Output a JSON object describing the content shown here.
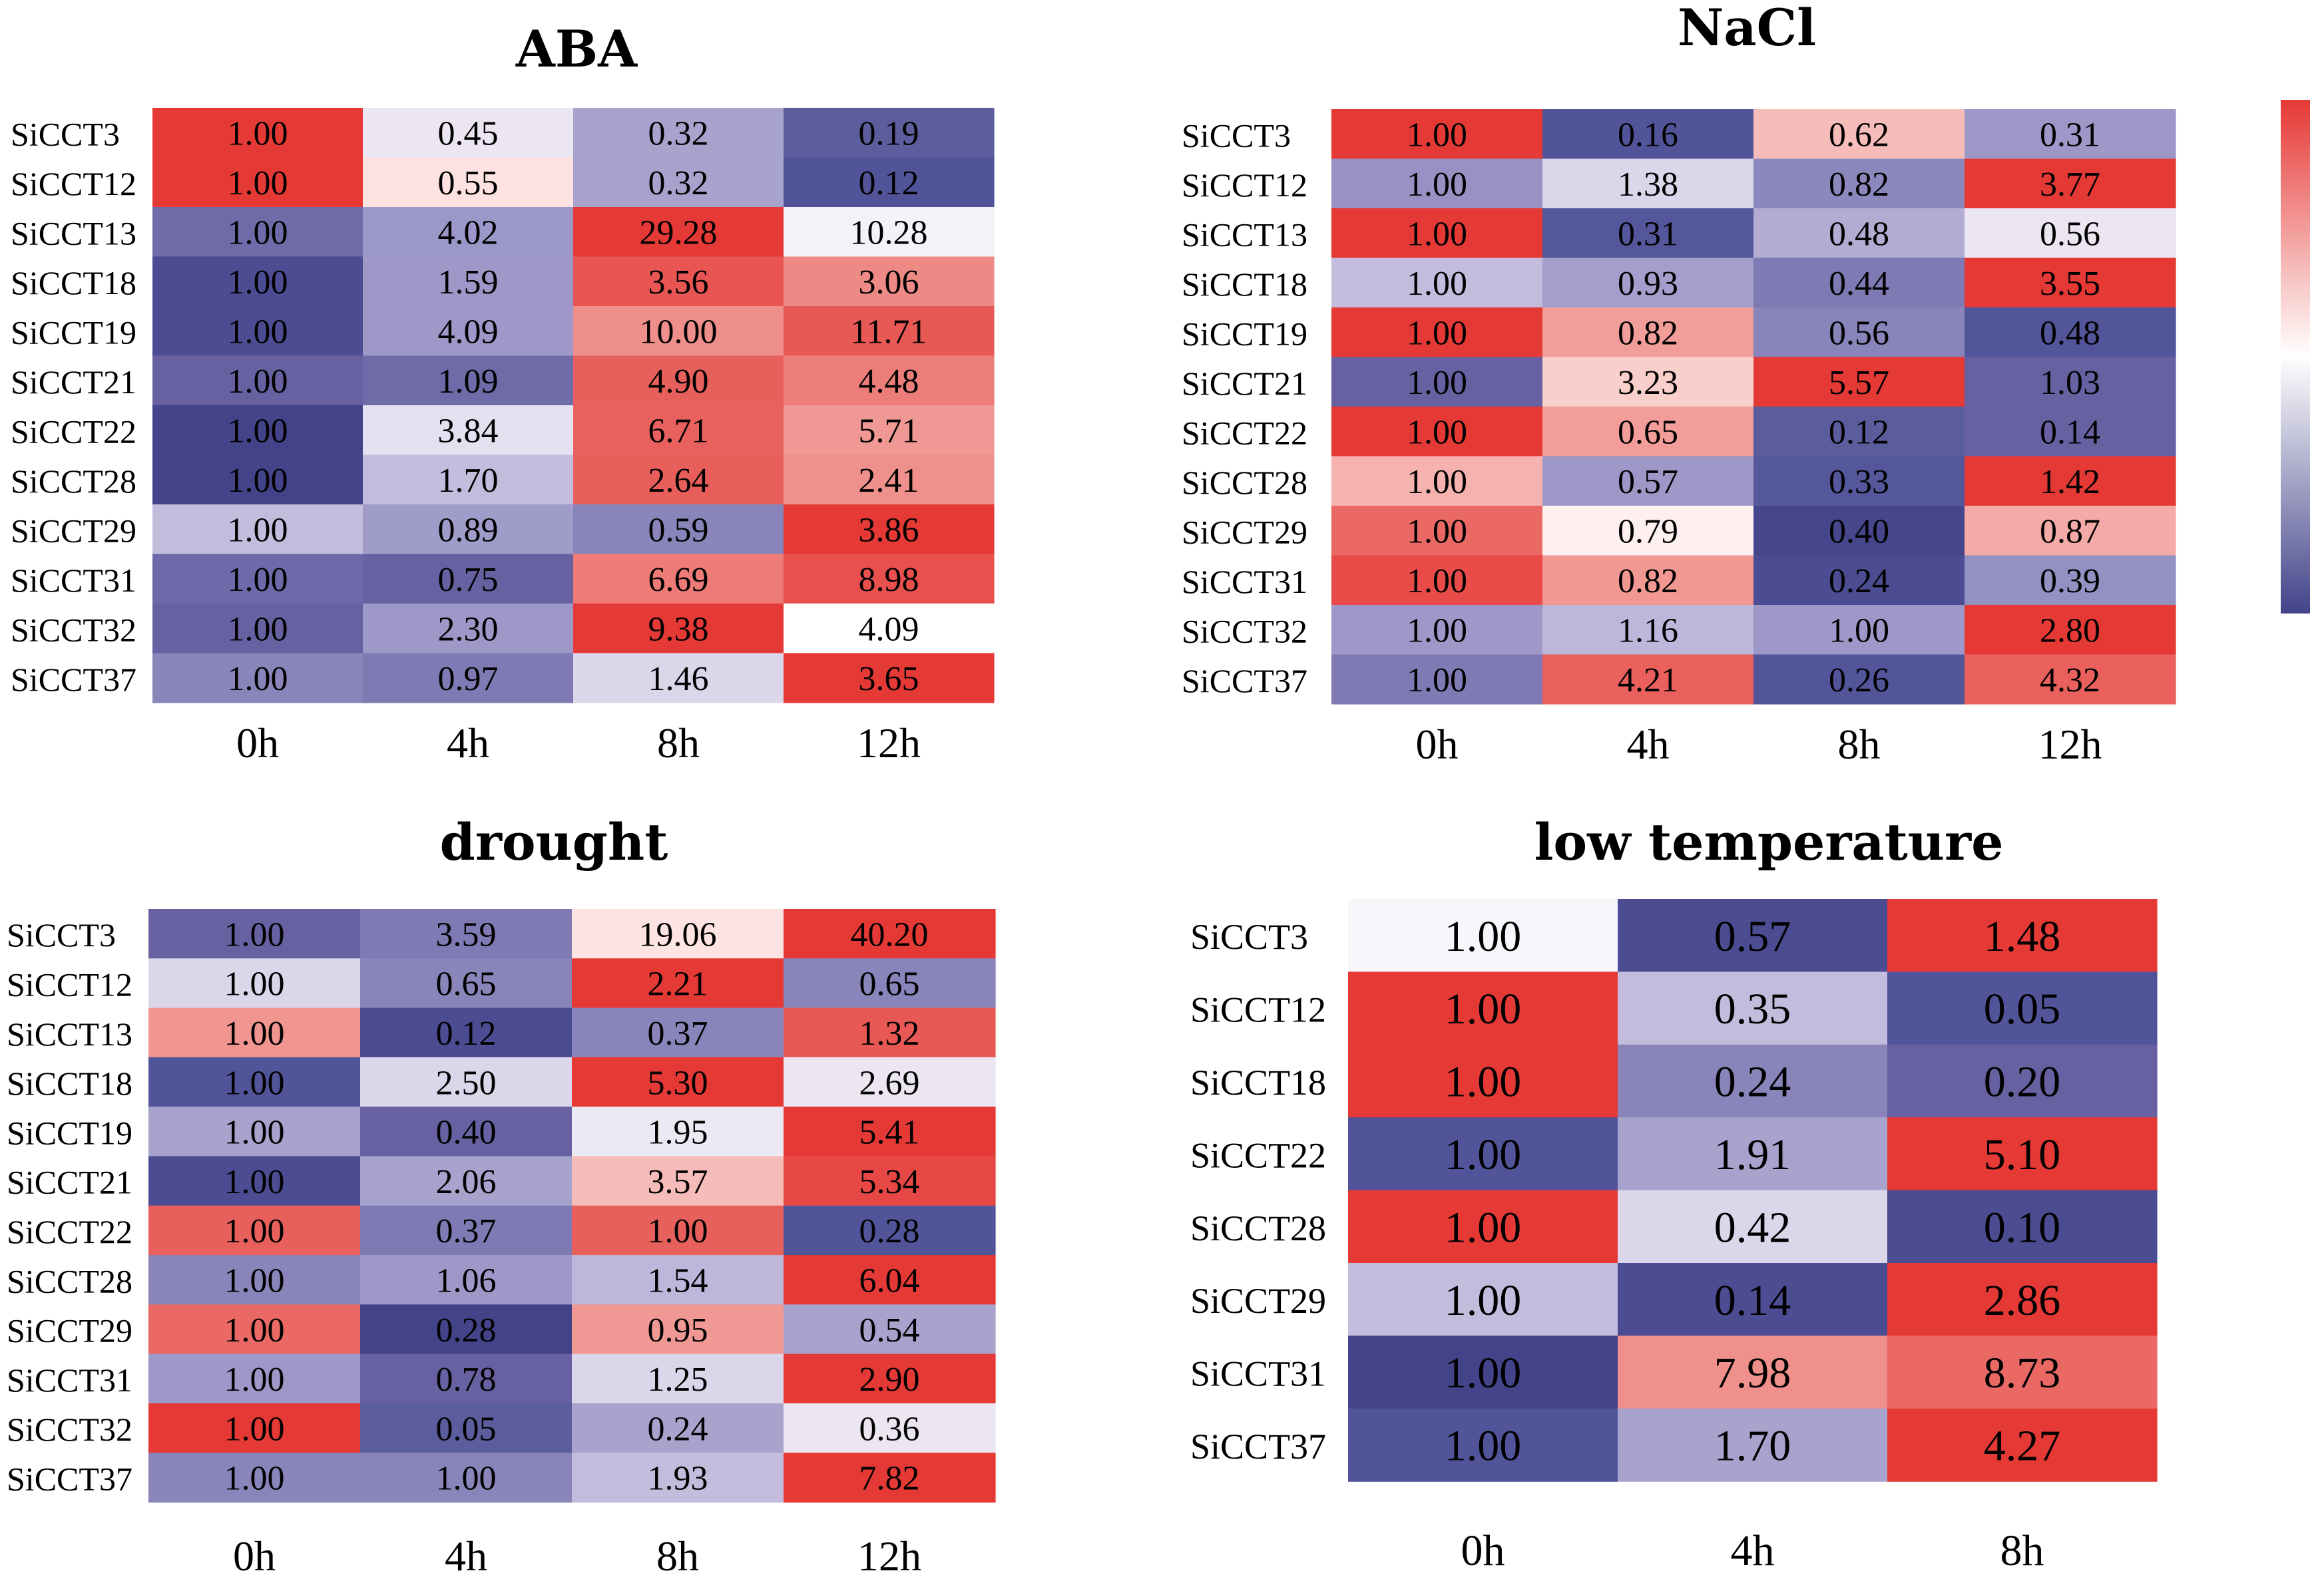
{
  "chart_data": [
    {
      "type": "heatmap",
      "title": "ABA",
      "rows": [
        "SiCCT3",
        "SiCCT12",
        "SiCCT13",
        "SiCCT18",
        "SiCCT19",
        "SiCCT21",
        "SiCCT22",
        "SiCCT28",
        "SiCCT29",
        "SiCCT31",
        "SiCCT32",
        "SiCCT37"
      ],
      "columns": [
        "0h",
        "4h",
        "8h",
        "12h"
      ],
      "values": [
        [
          "1.00",
          "0.45",
          "0.32",
          "0.19"
        ],
        [
          "1.00",
          "0.55",
          "0.32",
          "0.12"
        ],
        [
          "1.00",
          "4.02",
          "29.28",
          "10.28"
        ],
        [
          "1.00",
          "1.59",
          "3.56",
          "3.06"
        ],
        [
          "1.00",
          "4.09",
          "10.00",
          "11.71"
        ],
        [
          "1.00",
          "1.09",
          "4.90",
          "4.48"
        ],
        [
          "1.00",
          "3.84",
          "6.71",
          "5.71"
        ],
        [
          "1.00",
          "1.70",
          "2.64",
          "2.41"
        ],
        [
          "1.00",
          "0.89",
          "0.59",
          "3.86"
        ],
        [
          "1.00",
          "0.75",
          "6.69",
          "8.98"
        ],
        [
          "1.00",
          "2.30",
          "9.38",
          "4.09"
        ],
        [
          "1.00",
          "0.97",
          "1.46",
          "3.65"
        ]
      ],
      "colors": [
        [
          "#e53935",
          "#ebe6f1",
          "#a7a3cd",
          "#5c5d9c"
        ],
        [
          "#e53935",
          "#fde2e1",
          "#a7a3cd",
          "#52549a"
        ],
        [
          "#6f6aa8",
          "#9b97c8",
          "#e53936",
          "#f4f1f8"
        ],
        [
          "#4c4c93",
          "#9d98c8",
          "#e85552",
          "#ee8a86"
        ],
        [
          "#4c4c93",
          "#9d98c8",
          "#ef8f8b",
          "#e85955"
        ],
        [
          "#6761a2",
          "#6f6aa8",
          "#e8605c",
          "#ec7d78"
        ],
        [
          "#424389",
          "#e4e0ef",
          "#e8615e",
          "#f09894"
        ],
        [
          "#424389",
          "#c3bcdd",
          "#e85e5a",
          "#f0908c"
        ],
        [
          "#c3bcdd",
          "#a09cca",
          "#8984ba",
          "#e53936"
        ],
        [
          "#6e69a8",
          "#6761a2",
          "#ef7b77",
          "#e8504d"
        ],
        [
          "#6761a2",
          "#9d98c8",
          "#e53936",
          "#ffffff"
        ],
        [
          "#8984ba",
          "#7f7ab4",
          "#dcd6ea",
          "#e53936"
        ]
      ]
    },
    {
      "type": "heatmap",
      "title": "NaCl",
      "rows": [
        "SiCCT3",
        "SiCCT12",
        "SiCCT13",
        "SiCCT18",
        "SiCCT19",
        "SiCCT21",
        "SiCCT22",
        "SiCCT28",
        "SiCCT29",
        "SiCCT31",
        "SiCCT32",
        "SiCCT37"
      ],
      "columns": [
        "0h",
        "4h",
        "8h",
        "12h"
      ],
      "values": [
        [
          "1.00",
          "0.16",
          "0.62",
          "0.31"
        ],
        [
          "1.00",
          "1.38",
          "0.82",
          "3.77"
        ],
        [
          "1.00",
          "0.31",
          "0.48",
          "0.56"
        ],
        [
          "1.00",
          "0.93",
          "0.44",
          "3.55"
        ],
        [
          "1.00",
          "0.82",
          "0.56",
          "0.48"
        ],
        [
          "1.00",
          "3.23",
          "5.57",
          "1.03"
        ],
        [
          "1.00",
          "0.65",
          "0.12",
          "0.14"
        ],
        [
          "1.00",
          "0.57",
          "0.33",
          "1.42"
        ],
        [
          "1.00",
          "0.79",
          "0.40",
          "0.87"
        ],
        [
          "1.00",
          "0.82",
          "0.24",
          "0.39"
        ],
        [
          "1.00",
          "1.16",
          "1.00",
          "2.80"
        ],
        [
          "1.00",
          "4.21",
          "0.26",
          "4.32"
        ]
      ],
      "colors": [
        [
          "#e53936",
          "#52549a",
          "#f6bcb9",
          "#9d98c8"
        ],
        [
          "#9891c3",
          "#dcd6ea",
          "#8c87bc",
          "#e53936"
        ],
        [
          "#e53936",
          "#55579c",
          "#b2acd3",
          "#ebe6f1"
        ],
        [
          "#c3bcdd",
          "#a39ecb",
          "#7f7ab4",
          "#e53936"
        ],
        [
          "#e53936",
          "#f19e9a",
          "#8984ba",
          "#53559b"
        ],
        [
          "#6761a2",
          "#f9cfcc",
          "#e53936",
          "#6761a2"
        ],
        [
          "#e53936",
          "#f29d99",
          "#5b5c9c",
          "#6761a2"
        ],
        [
          "#f6b2ae",
          "#9d98c8",
          "#55579c",
          "#e53936"
        ],
        [
          "#ea6965",
          "#fef0f0",
          "#45468b",
          "#f4aaa6"
        ],
        [
          "#e84b48",
          "#f29893",
          "#4c4c93",
          "#9391c2"
        ],
        [
          "#9d98c8",
          "#bdb7db",
          "#9d98c8",
          "#e53936"
        ],
        [
          "#7f7ab4",
          "#ea605c",
          "#53559b",
          "#ea605c"
        ]
      ]
    },
    {
      "type": "heatmap",
      "title": "drought",
      "rows": [
        "SiCCT3",
        "SiCCT12",
        "SiCCT13",
        "SiCCT18",
        "SiCCT19",
        "SiCCT21",
        "SiCCT22",
        "SiCCT28",
        "SiCCT29",
        "SiCCT31",
        "SiCCT32",
        "SiCCT37"
      ],
      "columns": [
        "0h",
        "4h",
        "8h",
        "12h"
      ],
      "values": [
        [
          "1.00",
          "3.59",
          "19.06",
          "40.20"
        ],
        [
          "1.00",
          "0.65",
          "2.21",
          "0.65"
        ],
        [
          "1.00",
          "0.12",
          "0.37",
          "1.32"
        ],
        [
          "1.00",
          "2.50",
          "5.30",
          "2.69"
        ],
        [
          "1.00",
          "0.40",
          "1.95",
          "5.41"
        ],
        [
          "1.00",
          "2.06",
          "3.57",
          "5.34"
        ],
        [
          "1.00",
          "0.37",
          "1.00",
          "0.28"
        ],
        [
          "1.00",
          "1.06",
          "1.54",
          "6.04"
        ],
        [
          "1.00",
          "0.28",
          "0.95",
          "0.54"
        ],
        [
          "1.00",
          "0.78",
          "1.25",
          "2.90"
        ],
        [
          "1.00",
          "0.05",
          "0.24",
          "0.36"
        ],
        [
          "1.00",
          "1.00",
          "1.93",
          "7.82"
        ]
      ],
      "colors": [
        [
          "#6761a2",
          "#7f7ab4",
          "#fde3e1",
          "#e53936"
        ],
        [
          "#dcd6ea",
          "#8984ba",
          "#e53936",
          "#8984ba"
        ],
        [
          "#f19591",
          "#4c4c93",
          "#8984ba",
          "#e85955"
        ],
        [
          "#52549a",
          "#dcd6ea",
          "#e53936",
          "#ebe6f1"
        ],
        [
          "#a7a3cd",
          "#6761a2",
          "#ede9f4",
          "#e53936"
        ],
        [
          "#4c4c93",
          "#a7a3cd",
          "#f6bcb9",
          "#e74845"
        ],
        [
          "#e8605c",
          "#7f7ab4",
          "#e8605c",
          "#52549a"
        ],
        [
          "#8984ba",
          "#9d98c8",
          "#bdb7db",
          "#e53936"
        ],
        [
          "#ea6965",
          "#424389",
          "#f09894",
          "#a7a3cd"
        ],
        [
          "#9d98c8",
          "#6761a2",
          "#dcd6ea",
          "#e53936"
        ],
        [
          "#e53936",
          "#5c5d9c",
          "#a7a3cd",
          "#ebe6f1"
        ],
        [
          "#8984ba",
          "#8984ba",
          "#c3bcdd",
          "#e53936"
        ]
      ]
    },
    {
      "type": "heatmap",
      "title": "low temperature",
      "rows": [
        "SiCCT3",
        "SiCCT12",
        "SiCCT18",
        "SiCCT22",
        "SiCCT28",
        "SiCCT29",
        "SiCCT31",
        "SiCCT37"
      ],
      "columns": [
        "0h",
        "4h",
        "8h"
      ],
      "values": [
        [
          "1.00",
          "0.57",
          "1.48"
        ],
        [
          "1.00",
          "0.35",
          "0.05"
        ],
        [
          "1.00",
          "0.24",
          "0.20"
        ],
        [
          "1.00",
          "1.91",
          "5.10"
        ],
        [
          "1.00",
          "0.42",
          "0.10"
        ],
        [
          "1.00",
          "0.14",
          "2.86"
        ],
        [
          "1.00",
          "7.98",
          "8.73"
        ],
        [
          "1.00",
          "1.70",
          "4.27"
        ]
      ],
      "colors": [
        [
          "#f8f6fa",
          "#4c4c93",
          "#e53936"
        ],
        [
          "#e53936",
          "#c3bcdd",
          "#52549a"
        ],
        [
          "#e53936",
          "#8984ba",
          "#6761a2"
        ],
        [
          "#52549a",
          "#a7a3cd",
          "#e53936"
        ],
        [
          "#e53936",
          "#dcd6ea",
          "#4c4c93"
        ],
        [
          "#c3bcdd",
          "#4c4c93",
          "#e53936"
        ],
        [
          "#424389",
          "#f0908c",
          "#ea6965"
        ],
        [
          "#52549a",
          "#a7a3cd",
          "#e53936"
        ]
      ]
    }
  ],
  "legend": {
    "orientation": "vertical",
    "colors": [
      "#e53935",
      "#ffffff",
      "#424389"
    ]
  }
}
